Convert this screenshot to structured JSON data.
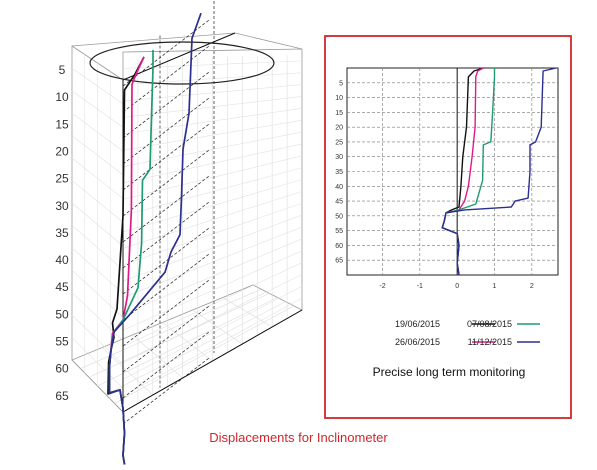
{
  "caption": "Displacements for Inclinometer",
  "colors": {
    "accent_red": "#d0262b",
    "series": [
      "#111111",
      "#e0198a",
      "#1f9a73",
      "#2b2f8f"
    ]
  },
  "chart_data": [
    {
      "type": "line",
      "title": "",
      "projection": "3d-isometric",
      "yticks": [
        5,
        10,
        15,
        20,
        25,
        30,
        35,
        40,
        45,
        50,
        55,
        60,
        65
      ],
      "ylim": [
        0,
        80
      ],
      "y_inverted": true,
      "grid": true,
      "highlight": "ellipse around top of profile",
      "series": [
        {
          "name": "19/06/2015",
          "color": "#111111",
          "points": [
            [
              0.7,
              2.5
            ],
            [
              0.4,
              4.5
            ],
            [
              0.05,
              6
            ],
            [
              0.0,
              30
            ],
            [
              -0.2,
              47
            ],
            [
              -0.35,
              49
            ],
            [
              -0.3,
              52
            ],
            [
              -0.4,
              54
            ],
            [
              -0.48,
              56
            ],
            [
              -0.5,
              62
            ],
            [
              -0.1,
              63
            ],
            [
              0.0,
              67
            ],
            [
              0.05,
              72
            ],
            [
              0.0,
              76
            ],
            [
              0.05,
              78
            ]
          ]
        },
        {
          "name": "26/06/2015",
          "color": "#e0198a",
          "points": [
            [
              0.7,
              2.5
            ],
            [
              0.45,
              4.5
            ],
            [
              0.3,
              6
            ],
            [
              0.28,
              30
            ],
            [
              0.15,
              46
            ],
            [
              0.0,
              50
            ],
            [
              -0.35,
              51
            ],
            [
              -0.4,
              54
            ],
            [
              -0.45,
              57
            ],
            [
              -0.45,
              62
            ],
            [
              -0.1,
              63
            ],
            [
              0.0,
              67
            ],
            [
              0.05,
              72
            ],
            [
              0.0,
              76
            ],
            [
              0.05,
              78
            ]
          ]
        },
        {
          "name": "07/08/2015",
          "color": "#1f9a73",
          "points": [
            [
              1.0,
              2.5
            ],
            [
              1.0,
              6
            ],
            [
              0.95,
              15
            ],
            [
              0.9,
              25
            ],
            [
              0.65,
              26
            ],
            [
              0.62,
              38
            ],
            [
              0.5,
              46
            ],
            [
              0.0,
              50
            ],
            [
              -0.3,
              51
            ],
            [
              -0.4,
              54
            ],
            [
              -0.45,
              57
            ],
            [
              -0.45,
              62
            ],
            [
              -0.1,
              63
            ],
            [
              0.0,
              67
            ],
            [
              0.05,
              72
            ],
            [
              0.0,
              76
            ],
            [
              0.05,
              78
            ]
          ]
        },
        {
          "name": "11/12/2015",
          "color": "#2b2f8f",
          "points": [
            [
              2.6,
              2.5
            ],
            [
              2.3,
              6
            ],
            [
              2.2,
              20
            ],
            [
              2.0,
              26
            ],
            [
              1.95,
              35
            ],
            [
              1.9,
              42
            ],
            [
              1.6,
              44
            ],
            [
              1.4,
              47
            ],
            [
              0.2,
              50
            ],
            [
              -0.3,
              51
            ],
            [
              -0.4,
              54
            ],
            [
              -0.45,
              57
            ],
            [
              -0.45,
              62
            ],
            [
              -0.1,
              63
            ],
            [
              0.0,
              67
            ],
            [
              0.05,
              72
            ],
            [
              0.0,
              76
            ],
            [
              0.05,
              78
            ]
          ]
        }
      ]
    },
    {
      "type": "line",
      "title": "Precise long term monitoring",
      "xlabel": "",
      "ylabel": "",
      "xlim": [
        -2.95,
        2.7
      ],
      "ylim": [
        0,
        70
      ],
      "y_inverted": true,
      "xticks": [
        -2,
        -1,
        0,
        1,
        2
      ],
      "yticks": [
        5,
        10,
        15,
        20,
        25,
        30,
        35,
        40,
        45,
        50,
        55,
        60,
        65
      ],
      "grid": true,
      "legend_position": "bottom",
      "legend": [
        {
          "name": "19/06/2015",
          "color": "#111111"
        },
        {
          "name": "26/06/2015",
          "color": "#e0198a"
        },
        {
          "name": "07/08/2015",
          "color": "#1f9a73"
        },
        {
          "name": "11/12/2015",
          "color": "#2b2f8f"
        }
      ],
      "series": [
        {
          "name": "19/06/2015",
          "color": "#111111",
          "points": [
            [
              0.7,
              0
            ],
            [
              0.45,
              1
            ],
            [
              0.3,
              3
            ],
            [
              0.25,
              20
            ],
            [
              0.15,
              30
            ],
            [
              0.1,
              40
            ],
            [
              0.05,
              47
            ],
            [
              -0.15,
              48
            ],
            [
              -0.3,
              49
            ],
            [
              -0.35,
              52
            ],
            [
              -0.4,
              54
            ],
            [
              0.0,
              56
            ],
            [
              0.05,
              60
            ],
            [
              0.0,
              66
            ],
            [
              0.05,
              70
            ]
          ]
        },
        {
          "name": "26/06/2015",
          "color": "#e0198a",
          "points": [
            [
              0.7,
              0
            ],
            [
              0.55,
              1
            ],
            [
              0.5,
              3
            ],
            [
              0.48,
              20
            ],
            [
              0.4,
              30
            ],
            [
              0.3,
              40
            ],
            [
              0.2,
              45
            ],
            [
              0.05,
              48
            ],
            [
              -0.3,
              49
            ],
            [
              -0.35,
              52
            ],
            [
              -0.4,
              54
            ],
            [
              0.0,
              56
            ],
            [
              0.05,
              60
            ],
            [
              0.0,
              66
            ],
            [
              0.05,
              70
            ]
          ]
        },
        {
          "name": "07/08/2015",
          "color": "#1f9a73",
          "points": [
            [
              1.0,
              0
            ],
            [
              1.0,
              3
            ],
            [
              0.95,
              15
            ],
            [
              0.9,
              25
            ],
            [
              0.7,
              26
            ],
            [
              0.68,
              38
            ],
            [
              0.5,
              46
            ],
            [
              0.05,
              48
            ],
            [
              -0.3,
              49
            ],
            [
              -0.35,
              52
            ],
            [
              -0.4,
              54
            ],
            [
              0.0,
              56
            ],
            [
              0.05,
              60
            ],
            [
              0.0,
              66
            ],
            [
              0.05,
              70
            ]
          ]
        },
        {
          "name": "11/12/2015",
          "color": "#2b2f8f",
          "points": [
            [
              2.65,
              0
            ],
            [
              2.3,
              1
            ],
            [
              2.25,
              20
            ],
            [
              2.1,
              25
            ],
            [
              1.95,
              26
            ],
            [
              1.95,
              35
            ],
            [
              1.9,
              44
            ],
            [
              1.55,
              45
            ],
            [
              1.45,
              47
            ],
            [
              0.2,
              48
            ],
            [
              -0.3,
              49
            ],
            [
              -0.35,
              52
            ],
            [
              -0.4,
              54
            ],
            [
              0.0,
              56
            ],
            [
              0.05,
              60
            ],
            [
              0.0,
              66
            ],
            [
              0.05,
              70
            ]
          ]
        }
      ]
    }
  ]
}
